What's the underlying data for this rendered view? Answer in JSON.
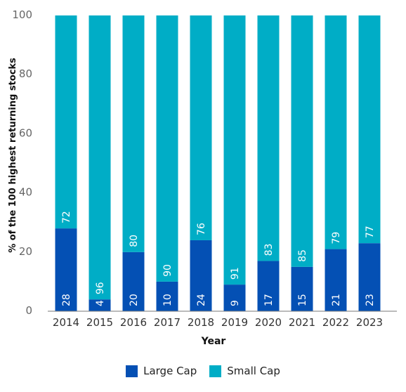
{
  "chart_data": {
    "type": "bar",
    "stacked": true,
    "categories": [
      "2014",
      "2015",
      "2016",
      "2017",
      "2018",
      "2019",
      "2020",
      "2021",
      "2022",
      "2023"
    ],
    "series": [
      {
        "name": "Large Cap",
        "color": "#0450b4",
        "values": [
          28,
          4,
          20,
          10,
          24,
          9,
          17,
          15,
          21,
          23
        ]
      },
      {
        "name": "Small Cap",
        "color": "#00adc6",
        "values": [
          72,
          96,
          80,
          90,
          76,
          91,
          83,
          85,
          79,
          77
        ]
      }
    ],
    "xlabel": "Year",
    "ylabel": "% of the 100 highest returning stocks",
    "ylim": [
      0,
      100
    ],
    "yticks": [
      0,
      20,
      40,
      60,
      80,
      100
    ],
    "grid": false,
    "legend_position": "bottom"
  }
}
